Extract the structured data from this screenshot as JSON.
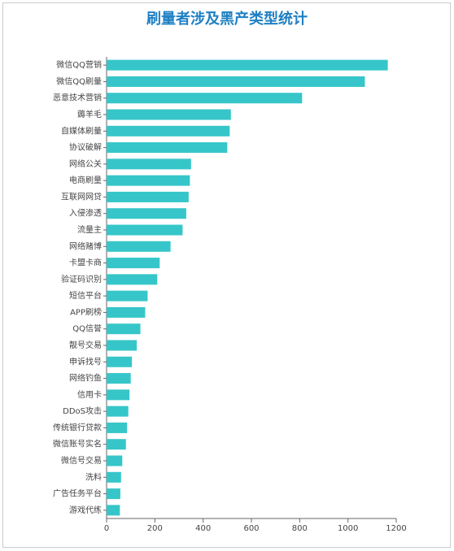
{
  "chart_data": {
    "type": "hbar",
    "title": "刷量者涉及黑产类型统计",
    "categories": [
      "微信QQ营销",
      "微信QQ刷量",
      "恶意技术营销",
      "薅羊毛",
      "自媒体刷量",
      "协议破解",
      "网络公关",
      "电商刷量",
      "互联网网贷",
      "入侵渗透",
      "流量主",
      "网络赌博",
      "卡盟卡商",
      "验证码识别",
      "短信平台",
      "APP刷榜",
      "QQ信誉",
      "靓号交易",
      "申诉找号",
      "网络钓鱼",
      "信用卡",
      "DDoS攻击",
      "传统银行贷款",
      "微信账号实名",
      "微信号交易",
      "洗料",
      "广告任务平台",
      "游戏代练"
    ],
    "values": [
      1165,
      1070,
      810,
      515,
      510,
      500,
      350,
      345,
      340,
      330,
      315,
      265,
      220,
      210,
      170,
      160,
      140,
      125,
      105,
      100,
      95,
      90,
      85,
      80,
      65,
      60,
      57,
      55
    ],
    "color": "#36c6c9",
    "xlim": [
      0,
      1200
    ],
    "xticks": [
      0,
      200,
      400,
      600,
      800,
      1000,
      1200
    ]
  }
}
